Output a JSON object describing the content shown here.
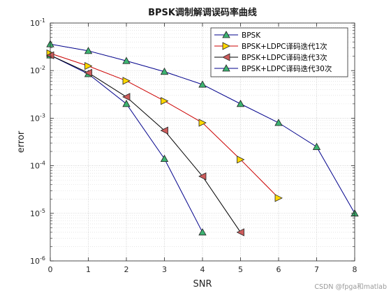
{
  "chart_data": {
    "type": "line",
    "title": "BPSK调制解调误码率曲线",
    "xlabel": "SNR",
    "ylabel": "error",
    "xlim": [
      0,
      8
    ],
    "ylim": [
      1e-06,
      0.1
    ],
    "yscale": "log",
    "grid": true,
    "minor_grid": true,
    "legend_position": "top-right",
    "x_ticks": [
      "0",
      "1",
      "2",
      "3",
      "4",
      "5",
      "6",
      "7",
      "8"
    ],
    "y_ticks": [
      {
        "value": 1e-06,
        "base": "10",
        "exp": "-6"
      },
      {
        "value": 1e-05,
        "base": "10",
        "exp": "-5"
      },
      {
        "value": 0.0001,
        "base": "10",
        "exp": "-4"
      },
      {
        "value": 0.001,
        "base": "10",
        "exp": "-3"
      },
      {
        "value": 0.01,
        "base": "10",
        "exp": "-2"
      },
      {
        "value": 0.1,
        "base": "10",
        "exp": "-1"
      }
    ],
    "series": [
      {
        "name": "BPSK",
        "color": "#00008b",
        "marker_fill": "#3cb371",
        "marker": "triangle-up",
        "x": [
          0,
          1,
          2,
          3,
          4
        ],
        "y": [
          0.021,
          0.0085,
          0.002,
          0.00014,
          4e-06
        ]
      },
      {
        "name": "BPSK+LDPC译码迭代1次",
        "color": "#cc0000",
        "marker_fill": "#ffd700",
        "marker": "triangle-right",
        "x": [
          0,
          1,
          2,
          3,
          4,
          5,
          6
        ],
        "y": [
          0.023,
          0.0125,
          0.0061,
          0.0023,
          0.0008,
          0.000135,
          2.1e-05
        ]
      },
      {
        "name": "BPSK+LDPC译码迭代3次",
        "color": "#000000",
        "marker_fill": "#cd5c5c",
        "marker": "triangle-left",
        "x": [
          0,
          1,
          2,
          3,
          4,
          5
        ],
        "y": [
          0.021,
          0.009,
          0.0028,
          0.00055,
          6e-05,
          4e-06
        ]
      },
      {
        "name": "BPSK+LDPC译码迭代30次",
        "color": "#00008b",
        "marker_fill": "#3cb371",
        "marker": "triangle-up",
        "x": [
          0,
          1,
          2,
          3,
          4,
          5,
          6,
          7,
          8
        ],
        "y": [
          0.036,
          0.026,
          0.016,
          0.0095,
          0.0051,
          0.002,
          0.0008,
          0.00025,
          1e-05
        ]
      }
    ]
  },
  "watermark": "CSDN @fpga和matlab"
}
